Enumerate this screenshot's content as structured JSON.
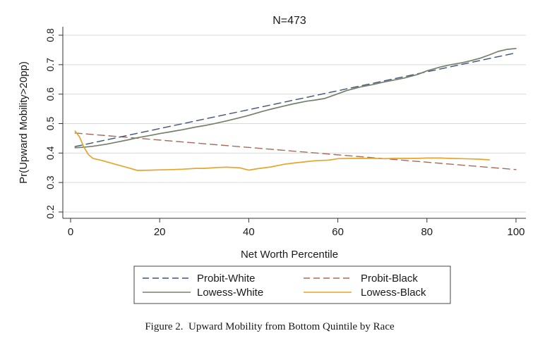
{
  "chart_data": {
    "type": "line",
    "title": "N=473",
    "xlabel": "Net Worth Percentile",
    "ylabel": "Pr(Upward Mobility>20pp)",
    "xlim": [
      0,
      100
    ],
    "ylim": [
      0.2,
      0.8
    ],
    "xticks": [
      "0",
      "20",
      "40",
      "60",
      "80",
      "100"
    ],
    "yticks": [
      "0.2",
      "0.3",
      "0.4",
      "0.5",
      "0.6",
      "0.7",
      "0.8"
    ],
    "grid": true,
    "legend_position": "bottom",
    "series": [
      {
        "name": "Probit-White",
        "style": "dashed",
        "color": "#3d5478",
        "x": [
          1,
          100
        ],
        "y": [
          0.422,
          0.74
        ]
      },
      {
        "name": "Probit-Black",
        "style": "dashed",
        "color": "#a86b5a",
        "x": [
          1,
          100
        ],
        "y": [
          0.468,
          0.344
        ]
      },
      {
        "name": "Lowess-White",
        "style": "solid",
        "color": "#75806a",
        "x": [
          1,
          3,
          5,
          8,
          10,
          13,
          15,
          18,
          20,
          22,
          25,
          28,
          30,
          32,
          35,
          38,
          40,
          43,
          45,
          48,
          50,
          53,
          55,
          57,
          60,
          62,
          65,
          68,
          70,
          72,
          75,
          78,
          80,
          83,
          85,
          88,
          90,
          92,
          94,
          96,
          98,
          100
        ],
        "y": [
          0.418,
          0.42,
          0.423,
          0.43,
          0.436,
          0.445,
          0.452,
          0.46,
          0.466,
          0.471,
          0.479,
          0.488,
          0.493,
          0.499,
          0.509,
          0.52,
          0.528,
          0.541,
          0.549,
          0.56,
          0.567,
          0.576,
          0.58,
          0.585,
          0.601,
          0.612,
          0.624,
          0.633,
          0.64,
          0.646,
          0.655,
          0.667,
          0.679,
          0.692,
          0.699,
          0.707,
          0.714,
          0.722,
          0.733,
          0.745,
          0.752,
          0.755
        ]
      },
      {
        "name": "Lowess-Black",
        "style": "solid",
        "color": "#e8a42c",
        "x": [
          1,
          2,
          3,
          4,
          5,
          7,
          10,
          13,
          15,
          18,
          20,
          23,
          25,
          28,
          30,
          33,
          35,
          38,
          40,
          42,
          45,
          48,
          50,
          53,
          55,
          58,
          60,
          63,
          65,
          68,
          70,
          73,
          75,
          78,
          80,
          83,
          85,
          88,
          90,
          92,
          94
        ],
        "y": [
          0.475,
          0.455,
          0.42,
          0.395,
          0.382,
          0.375,
          0.362,
          0.35,
          0.341,
          0.342,
          0.343,
          0.344,
          0.345,
          0.348,
          0.348,
          0.351,
          0.352,
          0.35,
          0.342,
          0.347,
          0.353,
          0.362,
          0.366,
          0.371,
          0.374,
          0.376,
          0.381,
          0.382,
          0.382,
          0.382,
          0.381,
          0.382,
          0.382,
          0.382,
          0.383,
          0.383,
          0.382,
          0.381,
          0.38,
          0.379,
          0.377
        ]
      }
    ]
  },
  "caption": "Figure 2.  Upward Mobility from Bottom Quintile by Race"
}
